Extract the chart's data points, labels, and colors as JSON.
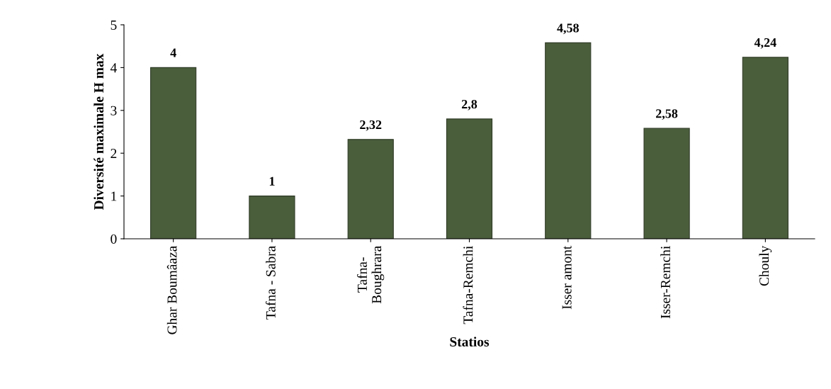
{
  "chart_data": {
    "type": "bar",
    "xlabel": "Statios",
    "ylabel": "Diversité maximale H max",
    "categories": [
      "Ghar Boumâaza",
      "Tafna - Sabra",
      "Tafna-\nBoughrara",
      "Tafna-Remchi",
      "Isser amont",
      "Isser-Remchi",
      "Chouly"
    ],
    "values": [
      4,
      1,
      2.32,
      2.8,
      4.58,
      2.58,
      4.24
    ],
    "value_labels": [
      "4",
      "1",
      "2,32",
      "2,8",
      "4,58",
      "2,58",
      "4,24"
    ],
    "color": "#4b5e3c",
    "ylim": [
      0,
      5
    ],
    "yticks": [
      0,
      1,
      2,
      3,
      4,
      5
    ],
    "grid": false,
    "legend": false
  }
}
